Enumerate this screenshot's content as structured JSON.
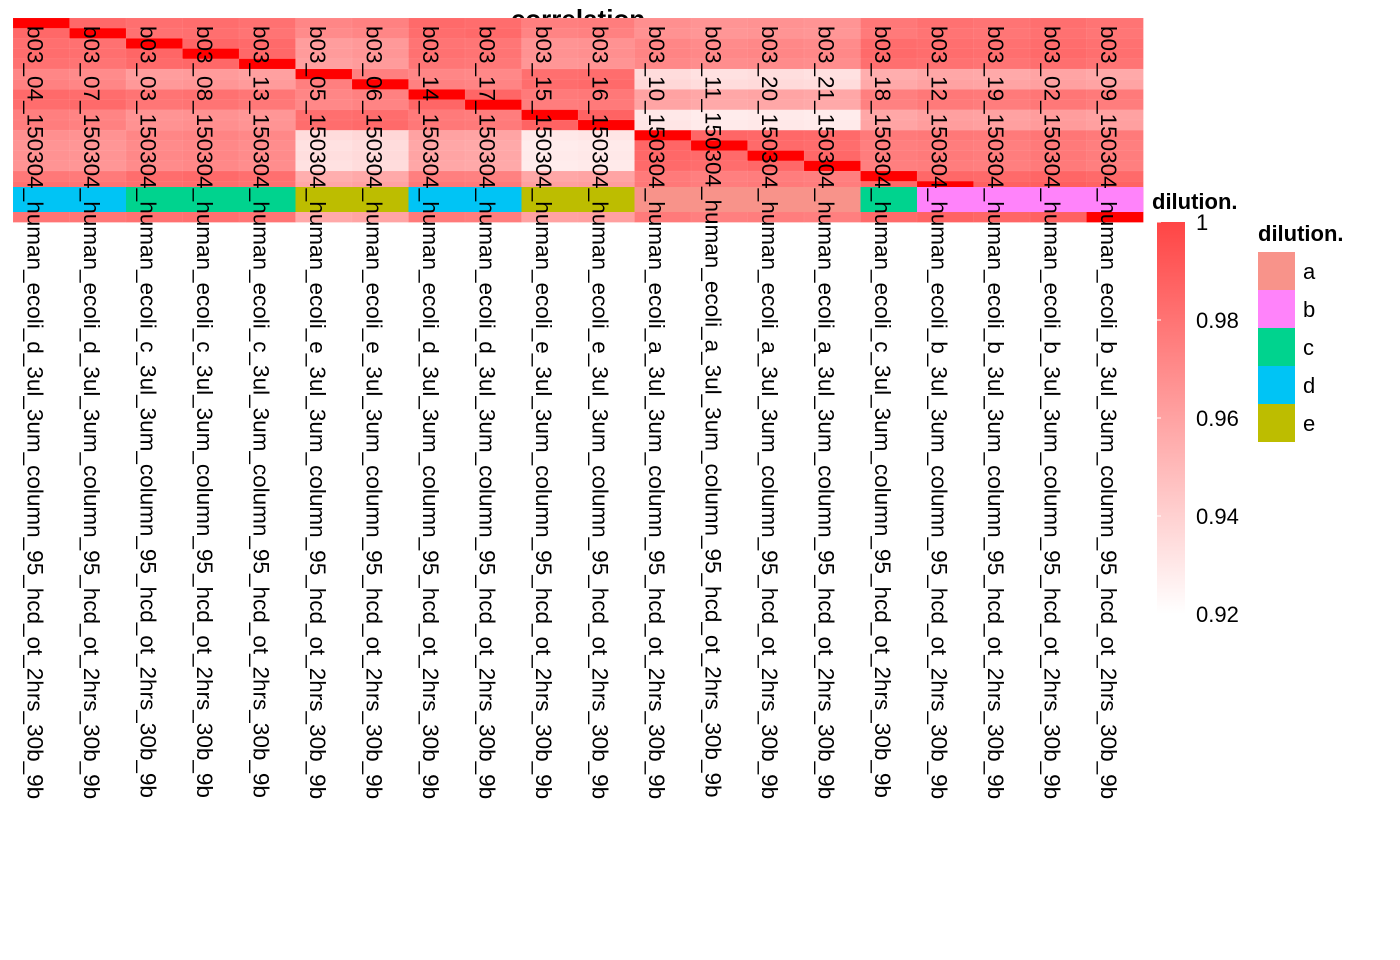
{
  "chart_data": {
    "type": "heatmap",
    "title": "correlation",
    "columns": [
      "b03_04_150304_human_ecoli_d_3ul_3um_column_95_hcd_ot_2hrs_30b_9b",
      "b03_07_150304_human_ecoli_d_3ul_3um_column_95_hcd_ot_2hrs_30b_9b",
      "b03_03_150304_human_ecoli_c_3ul_3um_column_95_hcd_ot_2hrs_30b_9b",
      "b03_08_150304_human_ecoli_c_3ul_3um_column_95_hcd_ot_2hrs_30b_9b",
      "b03_13_150304_human_ecoli_c_3ul_3um_column_95_hcd_ot_2hrs_30b_9b",
      "b03_05_150304_human_ecoli_e_3ul_3um_column_95_hcd_ot_2hrs_30b_9b",
      "b03_06_150304_human_ecoli_e_3ul_3um_column_95_hcd_ot_2hrs_30b_9b",
      "b03_14_150304_human_ecoli_d_3ul_3um_column_95_hcd_ot_2hrs_30b_9b",
      "b03_17_150304_human_ecoli_d_3ul_3um_column_95_hcd_ot_2hrs_30b_9b",
      "b03_15_150304_human_ecoli_e_3ul_3um_column_95_hcd_ot_2hrs_30b_9b",
      "b03_16_150304_human_ecoli_e_3ul_3um_column_95_hcd_ot_2hrs_30b_9b",
      "b03_10_150304_human_ecoli_a_3ul_3um_column_95_hcd_ot_2hrs_30b_9b",
      "b03_11_150304_human_ecoli_a_3ul_3um_column_95_hcd_ot_2hrs_30b_9b",
      "b03_20_150304_human_ecoli_a_3ul_3um_column_95_hcd_ot_2hrs_30b_9b",
      "b03_21_150304_human_ecoli_a_3ul_3um_column_95_hcd_ot_2hrs_30b_9b",
      "b03_18_150304_human_ecoli_c_3ul_3um_column_95_hcd_ot_2hrs_30b_9b",
      "b03_12_150304_human_ecoli_b_3ul_3um_column_95_hcd_ot_2hrs_30b_9b",
      "b03_19_150304_human_ecoli_b_3ul_3um_column_95_hcd_ot_2hrs_30b_9b",
      "b03_02_150304_human_ecoli_b_3ul_3um_column_95_hcd_ot_2hrs_30b_9b",
      "b03_09_150304_human_ecoli_b_3ul_3um_column_95_hcd_ot_2hrs_30b_9b"
    ],
    "column_dilution": [
      "d",
      "d",
      "c",
      "c",
      "c",
      "e",
      "e",
      "d",
      "d",
      "e",
      "e",
      "a",
      "a",
      "a",
      "a",
      "c",
      "b",
      "b",
      "b",
      "b"
    ],
    "row_count": 20,
    "color_scale": {
      "title": "dilution.",
      "min": 0.92,
      "max": 1.0,
      "low_color": "#ffffff",
      "high_color": "#ff0000",
      "ticks": [
        1,
        0.98,
        0.96,
        0.94,
        0.92
      ],
      "tick_labels": [
        "1",
        "0.98",
        "0.96",
        "0.94",
        "0.92"
      ]
    },
    "annotation_legend": {
      "title": "dilution.",
      "items": [
        {
          "label": "a",
          "color": "#F8938A"
        },
        {
          "label": "b",
          "color": "#FF83FA"
        },
        {
          "label": "c",
          "color": "#00D38E"
        },
        {
          "label": "d",
          "color": "#00C4F5"
        },
        {
          "label": "e",
          "color": "#BDBD00"
        }
      ]
    },
    "values": [
      [
        1.0,
        0.985,
        0.982,
        0.983,
        0.981,
        0.972,
        0.974,
        0.984,
        0.983,
        0.975,
        0.976,
        0.968,
        0.966,
        0.967,
        0.966,
        0.978,
        0.981,
        0.98,
        0.982,
        0.98
      ],
      [
        0.985,
        1.0,
        0.981,
        0.982,
        0.98,
        0.97,
        0.972,
        0.983,
        0.984,
        0.973,
        0.974,
        0.967,
        0.965,
        0.966,
        0.965,
        0.977,
        0.98,
        0.979,
        0.981,
        0.979
      ],
      [
        0.982,
        0.981,
        1.0,
        0.986,
        0.984,
        0.962,
        0.964,
        0.98,
        0.979,
        0.966,
        0.967,
        0.972,
        0.97,
        0.971,
        0.97,
        0.983,
        0.982,
        0.981,
        0.983,
        0.981
      ],
      [
        0.983,
        0.982,
        0.986,
        1.0,
        0.985,
        0.963,
        0.965,
        0.981,
        0.98,
        0.967,
        0.968,
        0.973,
        0.971,
        0.972,
        0.971,
        0.984,
        0.983,
        0.982,
        0.984,
        0.982
      ],
      [
        0.981,
        0.98,
        0.984,
        0.985,
        1.0,
        0.961,
        0.963,
        0.979,
        0.978,
        0.965,
        0.966,
        0.971,
        0.969,
        0.97,
        0.969,
        0.982,
        0.981,
        0.98,
        0.982,
        0.98
      ],
      [
        0.972,
        0.97,
        0.962,
        0.963,
        0.961,
        1.0,
        0.975,
        0.972,
        0.971,
        0.982,
        0.983,
        0.935,
        0.933,
        0.934,
        0.933,
        0.955,
        0.958,
        0.957,
        0.959,
        0.957
      ],
      [
        0.974,
        0.972,
        0.964,
        0.965,
        0.963,
        0.975,
        1.0,
        0.974,
        0.973,
        0.983,
        0.984,
        0.937,
        0.935,
        0.936,
        0.935,
        0.957,
        0.96,
        0.959,
        0.961,
        0.959
      ],
      [
        0.984,
        0.983,
        0.98,
        0.981,
        0.979,
        0.972,
        0.974,
        1.0,
        0.986,
        0.977,
        0.978,
        0.96,
        0.958,
        0.959,
        0.958,
        0.975,
        0.978,
        0.977,
        0.979,
        0.977
      ],
      [
        0.983,
        0.984,
        0.979,
        0.98,
        0.978,
        0.971,
        0.973,
        0.986,
        1.0,
        0.976,
        0.977,
        0.959,
        0.957,
        0.958,
        0.957,
        0.974,
        0.977,
        0.976,
        0.978,
        0.976
      ],
      [
        0.975,
        0.973,
        0.966,
        0.967,
        0.965,
        0.982,
        0.983,
        0.977,
        0.976,
        1.0,
        0.987,
        0.93,
        0.928,
        0.929,
        0.928,
        0.958,
        0.961,
        0.96,
        0.962,
        0.96
      ],
      [
        0.976,
        0.974,
        0.967,
        0.968,
        0.966,
        0.983,
        0.984,
        0.978,
        0.977,
        0.987,
        1.0,
        0.931,
        0.929,
        0.93,
        0.929,
        0.959,
        0.962,
        0.961,
        0.963,
        0.961
      ],
      [
        0.968,
        0.967,
        0.972,
        0.973,
        0.971,
        0.935,
        0.937,
        0.96,
        0.959,
        0.93,
        0.931,
        1.0,
        0.986,
        0.985,
        0.984,
        0.977,
        0.978,
        0.977,
        0.979,
        0.977
      ],
      [
        0.966,
        0.965,
        0.97,
        0.971,
        0.969,
        0.933,
        0.935,
        0.958,
        0.957,
        0.928,
        0.929,
        0.986,
        1.0,
        0.984,
        0.983,
        0.975,
        0.976,
        0.975,
        0.977,
        0.975
      ],
      [
        0.967,
        0.966,
        0.971,
        0.972,
        0.97,
        0.934,
        0.936,
        0.959,
        0.958,
        0.929,
        0.93,
        0.985,
        0.984,
        1.0,
        0.985,
        0.976,
        0.977,
        0.976,
        0.978,
        0.976
      ],
      [
        0.966,
        0.965,
        0.97,
        0.971,
        0.969,
        0.933,
        0.935,
        0.958,
        0.957,
        0.928,
        0.929,
        0.984,
        0.983,
        0.985,
        1.0,
        0.975,
        0.976,
        0.975,
        0.977,
        0.975
      ],
      [
        0.978,
        0.977,
        0.983,
        0.984,
        0.982,
        0.955,
        0.957,
        0.975,
        0.974,
        0.958,
        0.959,
        0.977,
        0.975,
        0.976,
        0.975,
        1.0,
        0.985,
        0.984,
        0.986,
        0.984
      ],
      [
        0.981,
        0.98,
        0.982,
        0.983,
        0.981,
        0.958,
        0.96,
        0.978,
        0.977,
        0.961,
        0.962,
        0.978,
        0.976,
        0.977,
        0.976,
        0.985,
        1.0,
        0.988,
        0.989,
        0.987
      ],
      [
        0.98,
        0.979,
        0.981,
        0.982,
        0.98,
        0.957,
        0.959,
        0.977,
        0.976,
        0.96,
        0.961,
        0.977,
        0.975,
        0.976,
        0.975,
        0.984,
        0.988,
        1.0,
        0.988,
        0.986
      ],
      [
        0.982,
        0.981,
        0.983,
        0.984,
        0.982,
        0.959,
        0.961,
        0.979,
        0.978,
        0.962,
        0.963,
        0.979,
        0.977,
        0.978,
        0.977,
        0.986,
        0.989,
        0.988,
        1.0,
        0.988
      ],
      [
        0.98,
        0.979,
        0.981,
        0.982,
        0.98,
        0.957,
        0.959,
        0.977,
        0.976,
        0.96,
        0.961,
        0.977,
        0.975,
        0.976,
        0.975,
        0.984,
        0.987,
        0.986,
        0.988,
        1.0
      ]
    ]
  }
}
